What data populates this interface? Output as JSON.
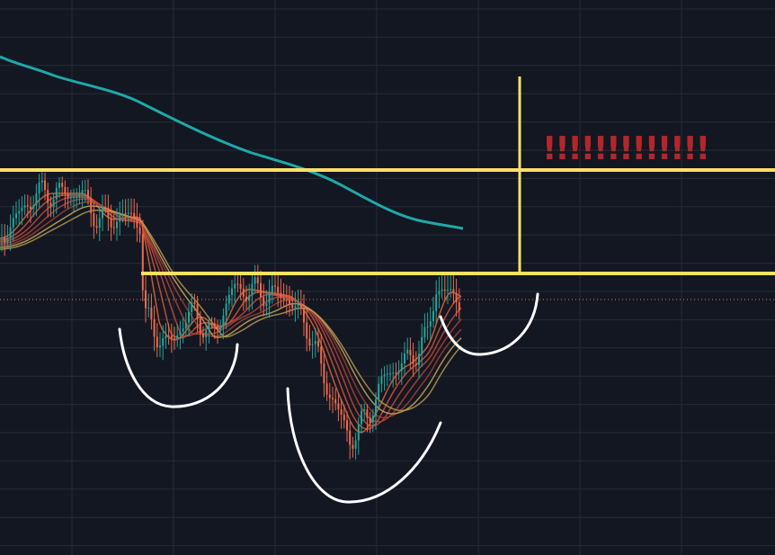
{
  "annotation": {
    "text": "!!!!!!!!!!!!!"
  }
}
